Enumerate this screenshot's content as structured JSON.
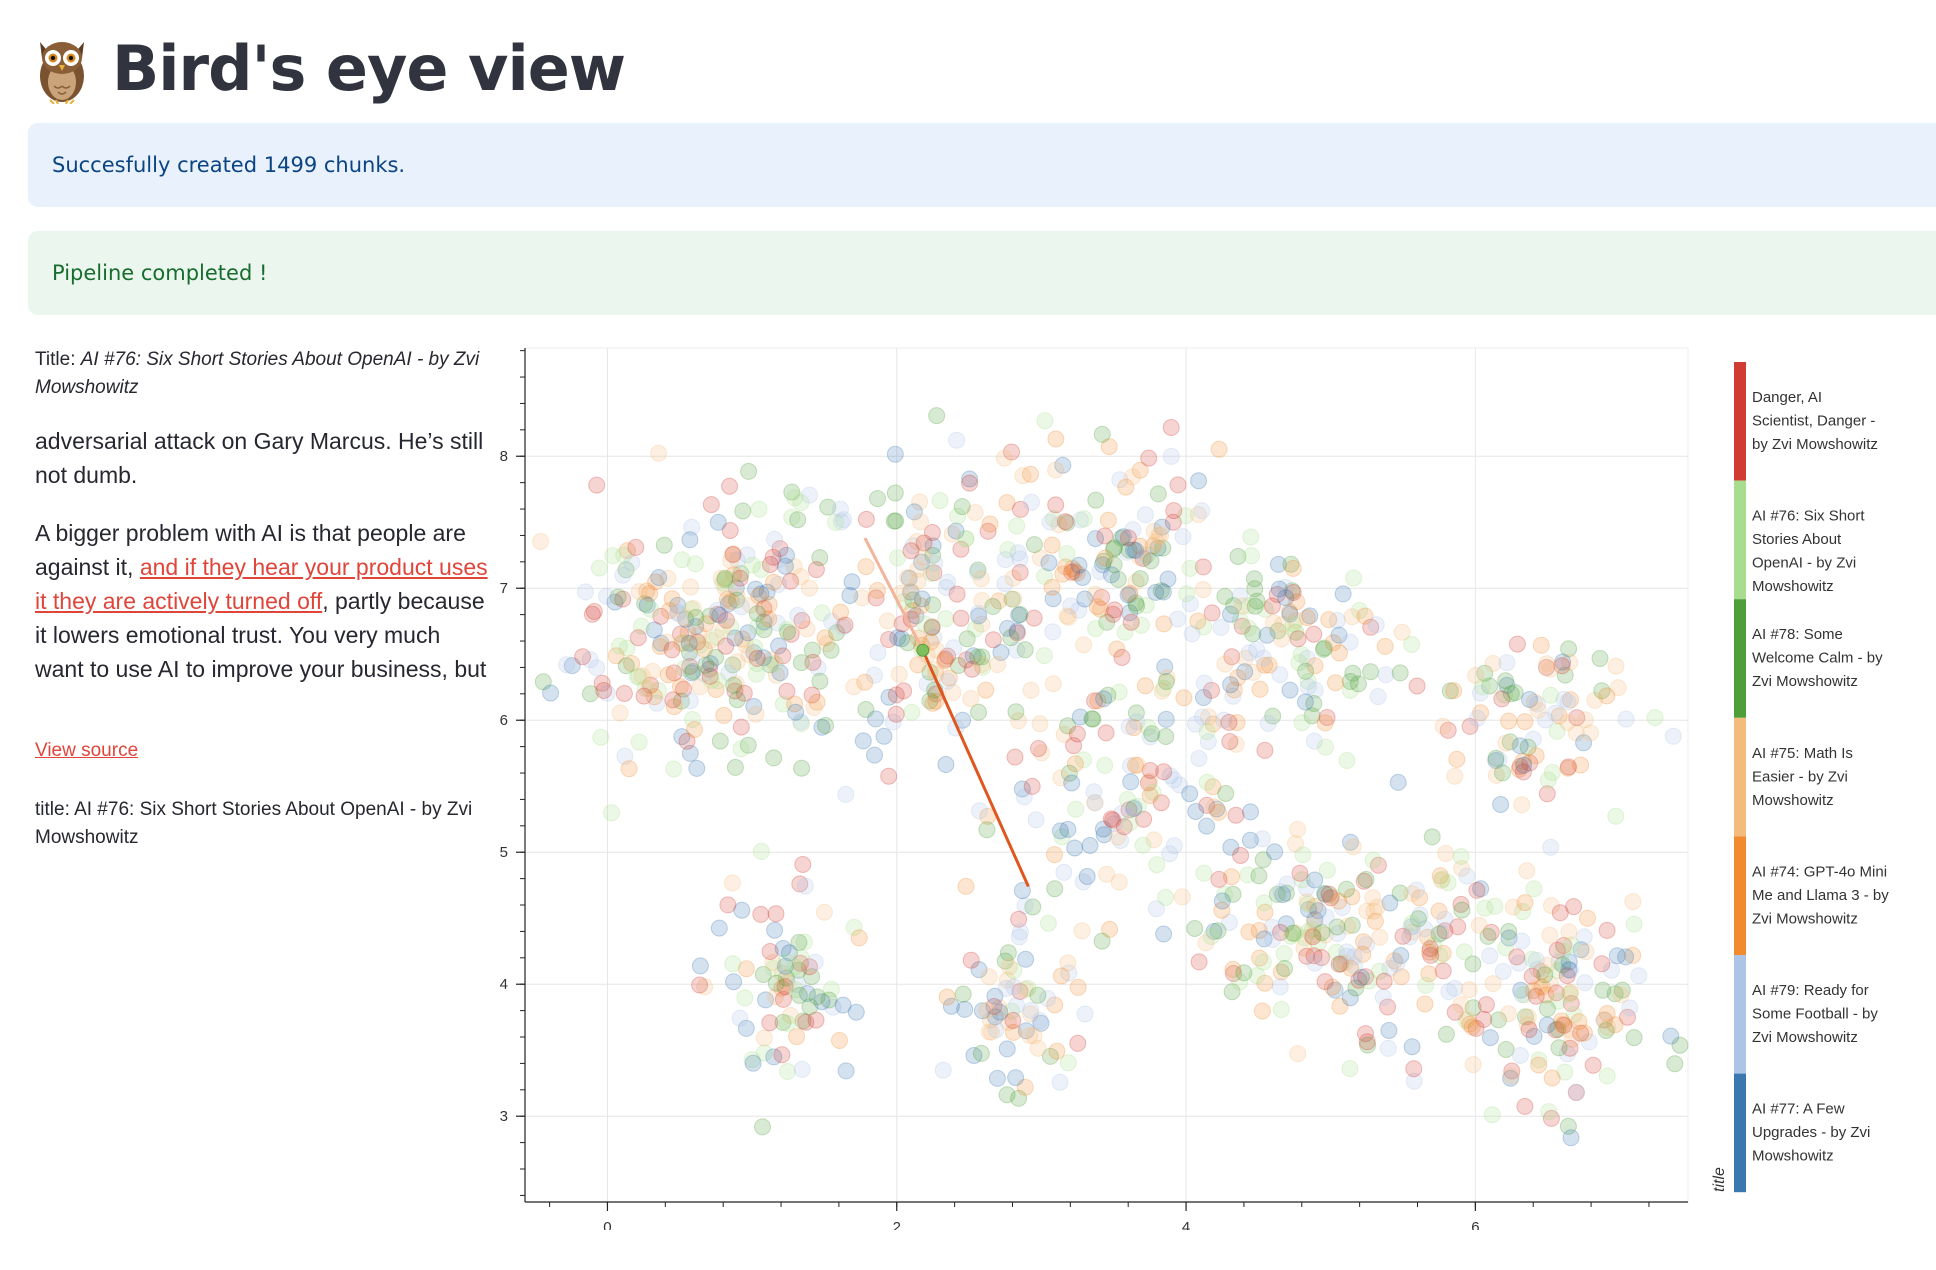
{
  "header": {
    "icon": "owl-icon",
    "title": "Bird's eye view"
  },
  "alerts": {
    "info": "Succesfully created 1499 chunks.",
    "success": "Pipeline completed !"
  },
  "document": {
    "title_prefix": "Title: ",
    "title": "AI #76: Six Short Stories About OpenAI - by Zvi Mowshowitz",
    "paragraph_1": "adversarial attack on Gary Marcus. He’s still not dumb.",
    "paragraph_2_before": "A bigger problem with AI is that people are against it, ",
    "paragraph_2_link": "and if they hear your product uses it they are actively turned off",
    "paragraph_2_after": ", partly because it lowers emotional trust. You very much want to use AI to improve your business, but",
    "view_source": "View source",
    "meta_title": "title: AI #76: Six Short Stories About OpenAI - by Zvi Mowshowitz"
  },
  "chart_data": {
    "type": "scatter",
    "xlim": [
      -0.57,
      7.47
    ],
    "ylim": [
      2.35,
      8.82
    ],
    "x_ticks": [
      0,
      2,
      4,
      6
    ],
    "y_ticks": [
      3,
      4,
      5,
      6,
      7,
      8
    ],
    "grid": true,
    "legend_title": "title",
    "legend_placement": "right",
    "legend": [
      {
        "name": "Danger, AI Scientist, Danger - by Zvi Mowshowitz",
        "color": "#d03b33"
      },
      {
        "name": "AI #76: Six Short Stories About OpenAI - by Zvi Mowshowitz",
        "color": "#a8dd8f"
      },
      {
        "name": "AI #78: Some Welcome Calm - by Zvi Mowshowitz",
        "color": "#4e9e3a"
      },
      {
        "name": "AI #75: Math Is Easier - by Zvi Mowshowitz",
        "color": "#f4bc7c"
      },
      {
        "name": "AI #74: GPT-4o Mini Me and Llama 3 - by Zvi Mowshowitz",
        "color": "#f28b30"
      },
      {
        "name": "AI #79: Ready for Some Football - by Zvi Mowshowitz",
        "color": "#aec4e6"
      },
      {
        "name": "AI #77: A Few Upgrades - by Zvi Mowshowitz",
        "color": "#3b78b0"
      }
    ],
    "clusters": [
      {
        "cx": 1.0,
        "cy": 6.8,
        "sx": 0.7,
        "sy": 0.8,
        "n": 170
      },
      {
        "cx": 0.4,
        "cy": 6.5,
        "sx": 0.6,
        "sy": 0.6,
        "n": 110
      },
      {
        "cx": 2.3,
        "cy": 6.8,
        "sx": 0.6,
        "sy": 0.9,
        "n": 160
      },
      {
        "cx": 3.5,
        "cy": 7.2,
        "sx": 0.6,
        "sy": 0.7,
        "n": 130
      },
      {
        "cx": 3.6,
        "cy": 5.5,
        "sx": 0.9,
        "sy": 0.8,
        "n": 140
      },
      {
        "cx": 4.7,
        "cy": 6.6,
        "sx": 0.6,
        "sy": 0.6,
        "n": 110
      },
      {
        "cx": 5.8,
        "cy": 4.2,
        "sx": 0.8,
        "sy": 0.7,
        "n": 130
      },
      {
        "cx": 6.6,
        "cy": 3.8,
        "sx": 0.5,
        "sy": 0.6,
        "n": 100
      },
      {
        "cx": 6.3,
        "cy": 6.0,
        "sx": 0.6,
        "sy": 0.5,
        "n": 90
      },
      {
        "cx": 1.2,
        "cy": 4.0,
        "sx": 0.4,
        "sy": 0.6,
        "n": 80
      },
      {
        "cx": 2.8,
        "cy": 3.8,
        "sx": 0.4,
        "sy": 0.5,
        "n": 70
      },
      {
        "cx": 4.8,
        "cy": 4.5,
        "sx": 0.6,
        "sy": 0.5,
        "n": 110
      }
    ],
    "highlight_point": {
      "x": 2.18,
      "y": 6.53,
      "color": "#7fbf5c"
    },
    "neighbor_line_1": {
      "x1": 2.18,
      "y1": 6.53,
      "x2": 2.91,
      "y2": 4.74,
      "color": "#e0561f"
    },
    "neighbor_line_2": {
      "x1": 2.18,
      "y1": 6.53,
      "x2": 1.78,
      "y2": 7.38,
      "color": "#f2b49a"
    }
  }
}
